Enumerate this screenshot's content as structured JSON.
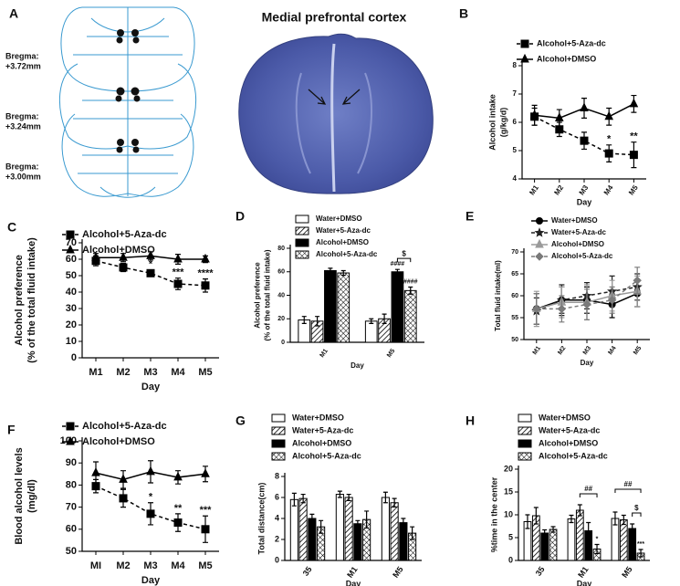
{
  "panel_a": {
    "panel": "A",
    "title": "Medial prefrontal cortex",
    "sections": [
      [
        "Bregma:",
        "+3.72mm"
      ],
      [
        "Bregma:",
        "+3.24mm"
      ],
      [
        "Bregma:",
        "+3.00mm"
      ]
    ]
  },
  "chart_data": [
    {
      "type": "line",
      "panel": "B",
      "ylabel": [
        "Alcohol intake",
        "(g/kg/d)"
      ],
      "xlabel": "Day",
      "categories": [
        "M1",
        "M2",
        "M3",
        "M4",
        "M5"
      ],
      "ylim": [
        4,
        8
      ],
      "yticks": [
        4,
        5,
        6,
        7,
        8
      ],
      "series": [
        {
          "name": "Alcohol+5-Aza-dc",
          "color": "#000000",
          "marker": "square",
          "dash": true,
          "values": [
            6.2,
            5.75,
            5.35,
            4.9,
            4.85
          ],
          "errors": [
            0.3,
            0.25,
            0.3,
            0.3,
            0.45
          ]
        },
        {
          "name": "Alcohol+DMSO",
          "color": "#000000",
          "marker": "triangle",
          "dash": false,
          "values": [
            6.25,
            6.15,
            6.5,
            6.2,
            6.65
          ],
          "errors": [
            0.35,
            0.3,
            0.35,
            0.3,
            0.3
          ]
        }
      ],
      "annotations": [
        {
          "text": "*",
          "category": "M4",
          "series": "Alcohol+5-Aza-dc"
        },
        {
          "text": "**",
          "category": "M5",
          "series": "Alcohol+5-Aza-dc"
        }
      ]
    },
    {
      "type": "line",
      "panel": "C",
      "ylabel": [
        "Alcohol preference",
        "(% of the total fluid intake)"
      ],
      "xlabel": "Day",
      "categories": [
        "M1",
        "M2",
        "M3",
        "M4",
        "M5"
      ],
      "ylim": [
        0,
        70
      ],
      "yticks": [
        0,
        10,
        20,
        30,
        40,
        50,
        60,
        70
      ],
      "series": [
        {
          "name": "Alcohol+5-Aza-dc",
          "color": "#000000",
          "marker": "square",
          "dash": true,
          "values": [
            59,
            55,
            51.5,
            45,
            44
          ],
          "errors": [
            3,
            2.5,
            2,
            3.5,
            4
          ]
        },
        {
          "name": "Alcohol+DMSO",
          "color": "#000000",
          "marker": "triangle",
          "dash": false,
          "values": [
            61,
            61,
            62,
            60,
            60
          ],
          "errors": [
            2.5,
            2.5,
            2.5,
            3,
            2
          ]
        }
      ],
      "annotations": [
        {
          "text": "*",
          "category": "M3",
          "series": "Alcohol+5-Aza-dc"
        },
        {
          "text": "***",
          "category": "M4",
          "series": "Alcohol+5-Aza-dc"
        },
        {
          "text": "****",
          "category": "M5",
          "series": "Alcohol+5-Aza-dc"
        }
      ]
    },
    {
      "type": "bar",
      "panel": "D",
      "ylabel": [
        "Alcohol preference",
        "(% of the total fluid intake)"
      ],
      "xlabel": "Day",
      "categories": [
        "M1",
        "M5"
      ],
      "ylim": [
        0,
        80
      ],
      "yticks": [
        0,
        20,
        40,
        60,
        80
      ],
      "series": [
        {
          "name": "Water+DMSO",
          "color": "#000000",
          "pattern": "none",
          "values": [
            19,
            18
          ],
          "errors": [
            3,
            2
          ]
        },
        {
          "name": "Water+5-Aza-dc",
          "color": "#000000",
          "pattern": "hatch",
          "values": [
            18,
            20
          ],
          "errors": [
            4,
            4
          ]
        },
        {
          "name": "Alcohol+DMSO",
          "color": "#000000",
          "pattern": "solid",
          "values": [
            61,
            60
          ],
          "errors": [
            2,
            2
          ]
        },
        {
          "name": "Alcohol+5-Aza-dc",
          "color": "#000000",
          "pattern": "crosshatch",
          "values": [
            59,
            44
          ],
          "errors": [
            2,
            3
          ]
        }
      ],
      "annotations": [
        {
          "text": "####",
          "category": "M5",
          "series": "Alcohol+DMSO"
        },
        {
          "text": "####",
          "category": "M5",
          "series": "Alcohol+5-Aza-dc"
        },
        {
          "text": "$",
          "category": "M5",
          "series": [
            "Alcohol+DMSO",
            "Alcohol+5-Aza-dc"
          ]
        }
      ]
    },
    {
      "type": "line",
      "panel": "E",
      "ylabel": [
        "Total fluid intake(ml)"
      ],
      "xlabel": "Day",
      "categories": [
        "M1",
        "M2",
        "M3",
        "M4",
        "M5"
      ],
      "ylim": [
        50,
        70
      ],
      "yticks": [
        50,
        55,
        60,
        65,
        70
      ],
      "series": [
        {
          "name": "Water+DMSO",
          "color": "#000000",
          "marker": "circle",
          "dash": false,
          "values": [
            57,
            59,
            59,
            58,
            60.5
          ],
          "errors": [
            3.5,
            3,
            3,
            3,
            3
          ]
        },
        {
          "name": "Water+5-Aza-dc",
          "color": "#222222",
          "marker": "star",
          "dash": true,
          "values": [
            56.5,
            59,
            60,
            61,
            62
          ],
          "errors": [
            3,
            3.5,
            3,
            3.5,
            3
          ]
        },
        {
          "name": "Alcohol+DMSO",
          "color": "#9a9a9a",
          "marker": "triangle",
          "dash": false,
          "values": [
            57,
            58.5,
            58.5,
            60,
            61
          ],
          "errors": [
            4,
            3.5,
            4,
            3.5,
            3.5
          ]
        },
        {
          "name": "Alcohol+5-Aza-dc",
          "color": "#7a7a7a",
          "marker": "diamond",
          "dash": true,
          "values": [
            57,
            57,
            58,
            59,
            63.5
          ],
          "errors": [
            3.5,
            3,
            3.5,
            3,
            3
          ]
        }
      ],
      "annotations": []
    },
    {
      "type": "line",
      "panel": "F",
      "ylabel": [
        "Blood alcohol levels",
        "(mg/dl)"
      ],
      "xlabel": "Day",
      "categories": [
        "MI",
        "M2",
        "M3",
        "M4",
        "M5"
      ],
      "ylim": [
        50,
        100
      ],
      "yticks": [
        50,
        60,
        70,
        80,
        90,
        100
      ],
      "series": [
        {
          "name": "Alcohol+5-Aza-dc",
          "color": "#000000",
          "marker": "square",
          "dash": true,
          "values": [
            79.5,
            74,
            67,
            63,
            60
          ],
          "errors": [
            3,
            4,
            5,
            4,
            6
          ]
        },
        {
          "name": "Alcohol+DMSO",
          "color": "#000000",
          "marker": "triangle",
          "dash": false,
          "values": [
            85.5,
            82.5,
            86,
            83.5,
            85
          ],
          "errors": [
            5,
            4,
            5,
            3,
            3.5
          ]
        }
      ],
      "annotations": [
        {
          "text": "*",
          "category": "M3",
          "series": "Alcohol+5-Aza-dc"
        },
        {
          "text": "**",
          "category": "M4",
          "series": "Alcohol+5-Aza-dc"
        },
        {
          "text": "***",
          "category": "M5",
          "series": "Alcohol+5-Aza-dc"
        }
      ]
    },
    {
      "type": "bar",
      "panel": "G",
      "ylabel": [
        "Total distance(cm)"
      ],
      "xlabel": "Day",
      "categories": [
        "35",
        "M1",
        "M5"
      ],
      "ylim": [
        0,
        8
      ],
      "yticks": [
        0,
        2,
        4,
        6,
        8
      ],
      "series": [
        {
          "name": "Water+DMSO",
          "color": "#000000",
          "pattern": "none",
          "values": [
            5.8,
            6.3,
            6.0
          ],
          "errors": [
            0.6,
            0.3,
            0.5
          ]
        },
        {
          "name": "Water+5-Aza-dc",
          "color": "#000000",
          "pattern": "hatch",
          "values": [
            5.9,
            6.0,
            5.5
          ],
          "errors": [
            0.4,
            0.3,
            0.4
          ]
        },
        {
          "name": "Alcohol+DMSO",
          "color": "#000000",
          "pattern": "solid",
          "values": [
            4.0,
            3.5,
            3.6
          ],
          "errors": [
            0.4,
            0.3,
            0.4
          ]
        },
        {
          "name": "Alcohol+5-Aza-dc",
          "color": "#000000",
          "pattern": "crosshatch",
          "values": [
            3.2,
            3.9,
            2.6
          ],
          "errors": [
            0.6,
            0.8,
            0.6
          ]
        }
      ],
      "annotations": []
    },
    {
      "type": "bar",
      "panel": "H",
      "ylabel": [
        "%time in the center"
      ],
      "xlabel": "Day",
      "categories": [
        "35",
        "M1",
        "M5"
      ],
      "ylim": [
        0,
        20
      ],
      "yticks": [
        0,
        5,
        10,
        15,
        20
      ],
      "series": [
        {
          "name": "Water+DMSO",
          "color": "#000000",
          "pattern": "none",
          "values": [
            8.5,
            9.1,
            9.2
          ],
          "errors": [
            1.5,
            0.8,
            1.4
          ]
        },
        {
          "name": "Water+5-Aza-dc",
          "color": "#000000",
          "pattern": "hatch",
          "values": [
            9.8,
            11,
            8.9
          ],
          "errors": [
            1.8,
            1.2,
            1.0
          ]
        },
        {
          "name": "Alcohol+DMSO",
          "color": "#000000",
          "pattern": "solid",
          "values": [
            6,
            6.5,
            7.0
          ],
          "errors": [
            0.7,
            1.8,
            1.0
          ]
        },
        {
          "name": "Alcohol+5-Aza-dc",
          "color": "#000000",
          "pattern": "crosshatch",
          "values": [
            6.8,
            2.5,
            1.6
          ],
          "errors": [
            0.6,
            1.0,
            0.8
          ]
        }
      ],
      "annotations": [
        {
          "text": "*",
          "category": "M1",
          "series": "Alcohol+5-Aza-dc"
        },
        {
          "text": "***",
          "category": "M5",
          "series": "Alcohol+5-Aza-dc"
        },
        {
          "text": "##",
          "category": "M1",
          "series": [
            "Water+5-Aza-dc",
            "Alcohol+5-Aza-dc"
          ]
        },
        {
          "text": "$",
          "category": "M5",
          "series": [
            "Alcohol+DMSO",
            "Alcohol+5-Aza-dc"
          ]
        },
        {
          "text": "##",
          "category": "M5",
          "series": [
            "Water+DMSO",
            "Alcohol+5-Aza-dc"
          ]
        }
      ]
    }
  ]
}
